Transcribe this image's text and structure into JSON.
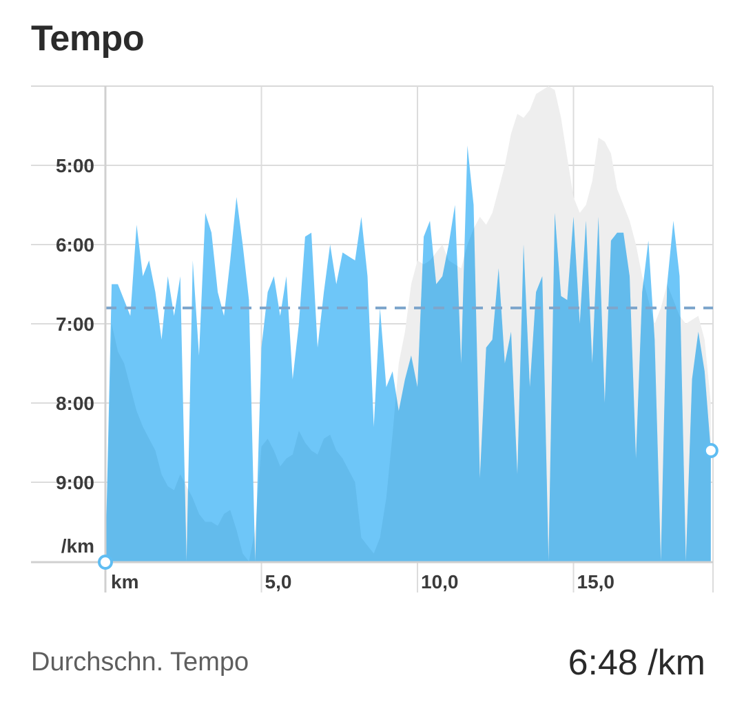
{
  "title": "Tempo",
  "chart_data": {
    "type": "area",
    "y_unit_label": "/km",
    "x_unit_label": "km",
    "y_ticks": [
      "5:00",
      "6:00",
      "7:00",
      "8:00",
      "9:00"
    ],
    "x_ticks": [
      "5,0",
      "10,0",
      "15,0"
    ],
    "x_range_km": [
      0,
      19.4
    ],
    "y_range_pace_min": [
      4.0,
      10.0
    ],
    "y_axis_inverted": true,
    "average_pace_min": 6.8,
    "series": [
      {
        "role": "pace",
        "color": "#6ec6f8",
        "x": [
          0,
          0.2,
          0.4,
          0.6,
          0.8,
          1.0,
          1.2,
          1.4,
          1.6,
          1.8,
          2.0,
          2.2,
          2.4,
          2.6,
          2.8,
          3.0,
          3.2,
          3.4,
          3.6,
          3.8,
          4.0,
          4.2,
          4.4,
          4.6,
          4.8,
          5.0,
          5.2,
          5.4,
          5.6,
          5.8,
          6.0,
          6.2,
          6.4,
          6.6,
          6.8,
          7.0,
          7.2,
          7.4,
          7.6,
          7.8,
          8.0,
          8.2,
          8.4,
          8.6,
          8.8,
          9.0,
          9.2,
          9.4,
          9.6,
          9.8,
          10.0,
          10.2,
          10.4,
          10.6,
          10.8,
          11.0,
          11.2,
          11.4,
          11.6,
          11.8,
          12.0,
          12.2,
          12.4,
          12.6,
          12.8,
          13.0,
          13.2,
          13.4,
          13.6,
          13.8,
          14.0,
          14.2,
          14.4,
          14.6,
          14.8,
          15.0,
          15.2,
          15.4,
          15.6,
          15.8,
          16.0,
          16.2,
          16.4,
          16.6,
          16.8,
          17.0,
          17.2,
          17.4,
          17.6,
          17.8,
          18.0,
          18.2,
          18.4,
          18.6,
          18.8,
          19.0,
          19.2,
          19.4
        ],
        "pace_min_per_km": [
          10.0,
          6.5,
          6.5,
          6.7,
          6.9,
          5.75,
          6.4,
          6.2,
          6.6,
          7.2,
          6.4,
          6.9,
          6.4,
          10.0,
          6.2,
          7.4,
          5.6,
          5.85,
          6.6,
          6.9,
          6.2,
          5.4,
          6.0,
          6.7,
          10.0,
          7.3,
          6.6,
          6.4,
          6.9,
          6.4,
          7.7,
          7.0,
          5.9,
          5.85,
          7.3,
          6.6,
          6.0,
          6.5,
          6.1,
          6.15,
          6.2,
          5.65,
          6.4,
          8.3,
          6.8,
          7.8,
          7.6,
          8.1,
          7.7,
          7.4,
          7.8,
          5.9,
          5.7,
          6.5,
          6.4,
          6.0,
          5.5,
          7.5,
          4.75,
          5.5,
          8.95,
          7.3,
          7.2,
          6.3,
          7.5,
          7.1,
          8.9,
          6.0,
          7.8,
          6.6,
          6.4,
          10.0,
          5.6,
          6.65,
          6.7,
          5.65,
          7.0,
          5.7,
          7.5,
          5.65,
          8.0,
          5.95,
          5.85,
          5.85,
          6.4,
          8.7,
          6.6,
          5.95,
          7.2,
          10.0,
          6.5,
          5.7,
          6.4,
          10.0,
          7.7,
          7.1,
          7.6,
          8.6
        ]
      },
      {
        "role": "elevation",
        "color": "#eeeeee",
        "x": [
          0,
          0.2,
          0.4,
          0.6,
          0.8,
          1.0,
          1.2,
          1.4,
          1.6,
          1.8,
          2.0,
          2.2,
          2.4,
          2.6,
          2.8,
          3.0,
          3.2,
          3.4,
          3.6,
          3.8,
          4.0,
          4.2,
          4.4,
          4.6,
          4.8,
          5.0,
          5.2,
          5.4,
          5.6,
          5.8,
          6.0,
          6.2,
          6.4,
          6.6,
          6.8,
          7.0,
          7.2,
          7.4,
          7.6,
          7.8,
          8.0,
          8.2,
          8.4,
          8.6,
          8.8,
          9.0,
          9.2,
          9.4,
          9.6,
          9.8,
          10.0,
          10.2,
          10.4,
          10.6,
          10.8,
          11.0,
          11.2,
          11.4,
          11.6,
          11.8,
          12.0,
          12.2,
          12.4,
          12.6,
          12.8,
          13.0,
          13.2,
          13.4,
          13.6,
          13.8,
          14.0,
          14.2,
          14.4,
          14.6,
          14.8,
          15.0,
          15.2,
          15.4,
          15.6,
          15.8,
          16.0,
          16.2,
          16.4,
          16.6,
          16.8,
          17.0,
          17.2,
          17.4,
          17.6,
          17.8,
          18.0,
          18.2,
          18.4,
          18.6,
          18.8,
          19.0,
          19.2,
          19.4
        ],
        "pace_min_per_km": [
          10.0,
          7.0,
          7.35,
          7.5,
          7.8,
          8.1,
          8.3,
          8.45,
          8.6,
          8.9,
          9.05,
          9.1,
          8.9,
          9.05,
          9.2,
          9.4,
          9.5,
          9.5,
          9.55,
          9.4,
          9.35,
          9.6,
          9.9,
          10.0,
          9.6,
          8.55,
          8.45,
          8.6,
          8.8,
          8.7,
          8.65,
          8.35,
          8.5,
          8.6,
          8.65,
          8.45,
          8.4,
          8.6,
          8.7,
          8.85,
          9.0,
          9.7,
          9.8,
          9.9,
          9.7,
          9.2,
          8.4,
          7.5,
          7.1,
          6.5,
          6.2,
          6.25,
          6.2,
          6.1,
          6.0,
          6.2,
          6.25,
          6.3,
          6.0,
          5.8,
          5.65,
          5.75,
          5.6,
          5.3,
          5.0,
          4.6,
          4.35,
          4.4,
          4.3,
          4.1,
          4.05,
          4.0,
          4.05,
          4.4,
          4.9,
          5.4,
          5.6,
          5.5,
          5.2,
          4.65,
          4.7,
          4.85,
          5.3,
          5.5,
          5.7,
          6.0,
          6.4,
          6.7,
          7.0,
          6.8,
          6.5,
          6.7,
          6.9,
          7.0,
          6.95,
          6.9,
          7.2,
          8.0
        ]
      }
    ]
  },
  "summary": {
    "label": "Durchschn. Tempo",
    "value": "6:48 /km"
  }
}
